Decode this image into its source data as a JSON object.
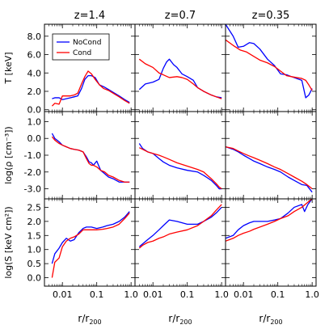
{
  "chart_data": {
    "type": "line",
    "legend": {
      "placement": "top-left of first panel",
      "entries": [
        {
          "name": "NoCond",
          "color": "#0000ff"
        },
        {
          "name": "Cond",
          "color": "#ff0000"
        }
      ]
    },
    "columns": [
      "z=1.4",
      "z=0.7",
      "z=0.35"
    ],
    "xlabel": "r/r",
    "xlabel_sub": "200",
    "x_axis": {
      "scale": "log",
      "range": [
        0.003,
        1.3
      ],
      "tick_values": [
        0.01,
        0.1,
        1.0
      ],
      "tick_labels": [
        "0.01",
        "0.1",
        "1.0"
      ]
    },
    "rows": [
      {
        "ylabel": "T [keV]",
        "ylim": [
          -0.2,
          9.3
        ],
        "tick_values": [
          0,
          2,
          4,
          6,
          8
        ],
        "tick_labels": [
          "0.0",
          "2.0",
          "4.0",
          "6.0",
          "8.0"
        ]
      },
      {
        "ylabel": "log(ρ [cm⁻³])",
        "ylim": [
          -3.6,
          1.6
        ],
        "tick_values": [
          -3,
          -2,
          -1,
          0,
          1
        ],
        "tick_labels": [
          "-3.0",
          "-2.0",
          "-1.0",
          "0.0",
          "1.0"
        ]
      },
      {
        "ylabel": "log(S [keV cm²])",
        "ylim": [
          -0.3,
          2.8
        ],
        "tick_values": [
          0,
          0.5,
          1,
          1.5,
          2,
          2.5
        ],
        "tick_labels": [
          "0.0",
          "0.5",
          "1.0",
          "1.5",
          "2.0",
          "2.5"
        ]
      }
    ],
    "panels": [
      {
        "row": 0,
        "col": 0,
        "series": [
          {
            "name": "NoCond",
            "color": "#0000ff",
            "x": [
              0.005,
              0.006,
              0.008,
              0.01,
              0.013,
              0.017,
              0.022,
              0.028,
              0.036,
              0.045,
              0.056,
              0.07,
              0.09,
              0.12,
              0.16,
              0.22,
              0.3,
              0.45,
              0.65,
              0.9
            ],
            "y": [
              1.2,
              1.3,
              1.3,
              1.1,
              1.2,
              1.3,
              1.4,
              1.5,
              2.3,
              3.3,
              3.7,
              3.7,
              3.5,
              2.7,
              2.5,
              2.2,
              1.9,
              1.5,
              1.1,
              0.8
            ]
          },
          {
            "name": "Cond",
            "color": "#ff0000",
            "x": [
              0.005,
              0.006,
              0.008,
              0.01,
              0.013,
              0.017,
              0.022,
              0.028,
              0.036,
              0.045,
              0.056,
              0.07,
              0.09,
              0.12,
              0.16,
              0.22,
              0.3,
              0.45,
              0.65,
              0.9
            ],
            "y": [
              0.4,
              0.7,
              0.6,
              1.5,
              1.5,
              1.5,
              1.6,
              1.8,
              2.8,
              3.6,
              4.2,
              3.9,
              3.3,
              2.7,
              2.3,
              2.1,
              1.8,
              1.4,
              1.0,
              0.7
            ]
          }
        ]
      },
      {
        "row": 0,
        "col": 1,
        "series": [
          {
            "name": "NoCond",
            "color": "#0000ff",
            "x": [
              0.004,
              0.006,
              0.01,
              0.015,
              0.02,
              0.025,
              0.03,
              0.04,
              0.05,
              0.07,
              0.1,
              0.15,
              0.2,
              0.3,
              0.5,
              0.7,
              1.0
            ],
            "y": [
              2.2,
              2.8,
              3.0,
              3.3,
              4.5,
              5.2,
              5.5,
              4.9,
              4.6,
              3.9,
              3.6,
              3.2,
              2.4,
              2.0,
              1.6,
              1.4,
              1.3
            ]
          },
          {
            "name": "Cond",
            "color": "#ff0000",
            "x": [
              0.004,
              0.006,
              0.01,
              0.015,
              0.02,
              0.03,
              0.05,
              0.07,
              0.1,
              0.15,
              0.2,
              0.3,
              0.5,
              0.7,
              1.0
            ],
            "y": [
              5.5,
              5.0,
              4.6,
              4.0,
              3.8,
              3.5,
              3.6,
              3.5,
              3.3,
              2.8,
              2.4,
              2.0,
              1.6,
              1.4,
              1.2
            ]
          }
        ]
      },
      {
        "row": 0,
        "col": 2,
        "series": [
          {
            "name": "NoCond",
            "color": "#0000ff",
            "x": [
              0.003,
              0.005,
              0.007,
              0.01,
              0.015,
              0.02,
              0.03,
              0.05,
              0.08,
              0.12,
              0.18,
              0.25,
              0.35,
              0.5,
              0.65,
              0.8,
              1.0
            ],
            "y": [
              9.3,
              8.0,
              6.8,
              6.9,
              7.3,
              7.2,
              6.6,
              5.5,
              4.8,
              3.9,
              3.8,
              3.6,
              3.4,
              3.2,
              1.3,
              1.6,
              2.3
            ]
          },
          {
            "name": "Cond",
            "color": "#ff0000",
            "x": [
              0.003,
              0.005,
              0.008,
              0.012,
              0.02,
              0.03,
              0.05,
              0.08,
              0.12,
              0.18,
              0.25,
              0.35,
              0.5,
              0.65,
              0.8,
              1.0
            ],
            "y": [
              7.6,
              7.0,
              6.5,
              6.3,
              5.8,
              5.4,
              5.1,
              4.7,
              4.2,
              3.7,
              3.6,
              3.5,
              3.4,
              3.2,
              2.7,
              2.1
            ]
          }
        ]
      },
      {
        "row": 1,
        "col": 0,
        "series": [
          {
            "name": "NoCond",
            "color": "#0000ff",
            "x": [
              0.005,
              0.006,
              0.008,
              0.01,
              0.013,
              0.017,
              0.022,
              0.03,
              0.04,
              0.05,
              0.06,
              0.07,
              0.08,
              0.1,
              0.13,
              0.17,
              0.22,
              0.3,
              0.45,
              0.65,
              0.9
            ],
            "y": [
              0.3,
              0.0,
              -0.2,
              -0.4,
              -0.5,
              -0.6,
              -0.65,
              -0.7,
              -0.8,
              -1.1,
              -1.4,
              -1.45,
              -1.6,
              -1.35,
              -1.9,
              -2.1,
              -2.3,
              -2.4,
              -2.6,
              -2.6,
              -2.6
            ]
          },
          {
            "name": "Cond",
            "color": "#ff0000",
            "x": [
              0.005,
              0.006,
              0.008,
              0.01,
              0.013,
              0.017,
              0.022,
              0.03,
              0.04,
              0.05,
              0.06,
              0.07,
              0.08,
              0.1,
              0.13,
              0.17,
              0.22,
              0.3,
              0.45,
              0.65,
              0.9
            ],
            "y": [
              0.1,
              -0.1,
              -0.3,
              -0.4,
              -0.5,
              -0.6,
              -0.65,
              -0.7,
              -0.8,
              -1.2,
              -1.5,
              -1.6,
              -1.6,
              -1.7,
              -1.9,
              -2.0,
              -2.2,
              -2.3,
              -2.5,
              -2.6,
              -2.6
            ]
          }
        ]
      },
      {
        "row": 1,
        "col": 1,
        "series": [
          {
            "name": "NoCond",
            "color": "#0000ff",
            "x": [
              0.004,
              0.005,
              0.007,
              0.01,
              0.015,
              0.02,
              0.03,
              0.05,
              0.1,
              0.2,
              0.3,
              0.5,
              0.7,
              0.85,
              1.0
            ],
            "y": [
              -0.3,
              -0.6,
              -0.8,
              -0.9,
              -1.2,
              -1.4,
              -1.6,
              -1.75,
              -1.9,
              -2.0,
              -2.2,
              -2.5,
              -2.8,
              -3.0,
              -3.0
            ]
          },
          {
            "name": "Cond",
            "color": "#ff0000",
            "x": [
              0.004,
              0.005,
              0.007,
              0.01,
              0.015,
              0.02,
              0.03,
              0.05,
              0.1,
              0.2,
              0.3,
              0.5,
              0.7,
              0.85,
              1.0
            ],
            "y": [
              -0.55,
              -0.65,
              -0.8,
              -0.9,
              -1.0,
              -1.1,
              -1.25,
              -1.45,
              -1.65,
              -1.85,
              -2.0,
              -2.4,
              -2.7,
              -2.9,
              -3.0
            ]
          }
        ]
      },
      {
        "row": 1,
        "col": 2,
        "series": [
          {
            "name": "NoCond",
            "color": "#0000ff",
            "x": [
              0.003,
              0.005,
              0.007,
              0.01,
              0.015,
              0.02,
              0.03,
              0.05,
              0.08,
              0.12,
              0.2,
              0.3,
              0.5,
              0.7,
              1.0
            ],
            "y": [
              -0.5,
              -0.65,
              -0.8,
              -1.0,
              -1.2,
              -1.35,
              -1.5,
              -1.7,
              -1.85,
              -2.0,
              -2.3,
              -2.5,
              -2.75,
              -2.8,
              -3.2
            ]
          },
          {
            "name": "Cond",
            "color": "#ff0000",
            "x": [
              0.003,
              0.005,
              0.007,
              0.01,
              0.015,
              0.02,
              0.03,
              0.05,
              0.08,
              0.12,
              0.2,
              0.3,
              0.5,
              0.7,
              1.0
            ],
            "y": [
              -0.5,
              -0.6,
              -0.75,
              -0.9,
              -1.05,
              -1.15,
              -1.3,
              -1.5,
              -1.7,
              -1.85,
              -2.1,
              -2.3,
              -2.55,
              -2.75,
              -3.0
            ]
          }
        ]
      },
      {
        "row": 2,
        "col": 0,
        "series": [
          {
            "name": "NoCond",
            "color": "#0000ff",
            "x": [
              0.005,
              0.006,
              0.008,
              0.01,
              0.013,
              0.017,
              0.022,
              0.03,
              0.04,
              0.05,
              0.07,
              0.1,
              0.15,
              0.2,
              0.3,
              0.45,
              0.65,
              0.9
            ],
            "y": [
              0.5,
              0.85,
              1.05,
              1.25,
              1.4,
              1.3,
              1.35,
              1.6,
              1.75,
              1.8,
              1.8,
              1.75,
              1.8,
              1.85,
              1.9,
              2.0,
              2.15,
              2.35
            ]
          },
          {
            "name": "Cond",
            "color": "#ff0000",
            "x": [
              0.005,
              0.006,
              0.008,
              0.01,
              0.013,
              0.017,
              0.022,
              0.03,
              0.04,
              0.05,
              0.07,
              0.1,
              0.15,
              0.2,
              0.3,
              0.45,
              0.65,
              0.9
            ],
            "y": [
              0.0,
              0.55,
              0.7,
              1.1,
              1.3,
              1.4,
              1.45,
              1.55,
              1.7,
              1.7,
              1.7,
              1.7,
              1.72,
              1.75,
              1.8,
              1.9,
              2.1,
              2.3
            ]
          }
        ]
      },
      {
        "row": 2,
        "col": 1,
        "series": [
          {
            "name": "NoCond",
            "color": "#0000ff",
            "x": [
              0.004,
              0.005,
              0.007,
              0.01,
              0.015,
              0.02,
              0.03,
              0.05,
              0.1,
              0.2,
              0.3,
              0.5,
              0.7,
              1.0
            ],
            "y": [
              1.1,
              1.2,
              1.35,
              1.5,
              1.7,
              1.85,
              2.05,
              2.0,
              1.9,
              1.9,
              2.0,
              2.15,
              2.3,
              2.5
            ]
          },
          {
            "name": "Cond",
            "color": "#ff0000",
            "x": [
              0.004,
              0.005,
              0.007,
              0.01,
              0.015,
              0.02,
              0.03,
              0.05,
              0.1,
              0.2,
              0.3,
              0.5,
              0.7,
              1.0
            ],
            "y": [
              1.05,
              1.15,
              1.25,
              1.3,
              1.4,
              1.45,
              1.55,
              1.62,
              1.7,
              1.85,
              2.0,
              2.2,
              2.4,
              2.6
            ]
          }
        ]
      },
      {
        "row": 2,
        "col": 2,
        "series": [
          {
            "name": "NoCond",
            "color": "#0000ff",
            "x": [
              0.003,
              0.005,
              0.007,
              0.01,
              0.015,
              0.02,
              0.03,
              0.05,
              0.08,
              0.12,
              0.2,
              0.3,
              0.5,
              0.6,
              0.75,
              1.0
            ],
            "y": [
              1.4,
              1.5,
              1.7,
              1.85,
              1.95,
              2.0,
              2.0,
              2.0,
              2.05,
              2.1,
              2.3,
              2.5,
              2.6,
              2.35,
              2.6,
              2.8
            ]
          },
          {
            "name": "Cond",
            "color": "#ff0000",
            "x": [
              0.003,
              0.005,
              0.007,
              0.01,
              0.015,
              0.02,
              0.03,
              0.05,
              0.08,
              0.12,
              0.2,
              0.3,
              0.5,
              0.7,
              1.0
            ],
            "y": [
              1.3,
              1.4,
              1.5,
              1.58,
              1.65,
              1.72,
              1.8,
              1.9,
              2.0,
              2.1,
              2.2,
              2.35,
              2.5,
              2.65,
              2.8
            ]
          }
        ]
      }
    ]
  }
}
